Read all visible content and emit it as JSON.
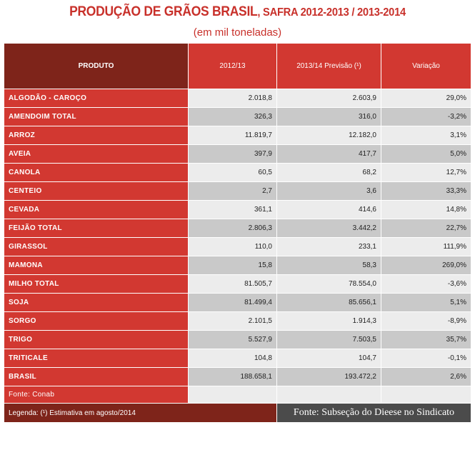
{
  "title_main": "PRODUÇÃO DE GRÃOS BRASIL",
  "title_sub": ", SAFRA 2012-2013 / 2013-2014",
  "subtitle": "(em mil toneladas)",
  "headers": {
    "produto": "PRODUTO",
    "y2012": "2012/13",
    "y2013": "2013/14 Previsão (¹)",
    "variacao": "Variação"
  },
  "rows": [
    {
      "produto": "ALGODÃO - CAROÇO",
      "y2012": "2.018,8",
      "y2013": "2.603,9",
      "variacao": "29,0%"
    },
    {
      "produto": "AMENDOIM TOTAL",
      "y2012": "326,3",
      "y2013": "316,0",
      "variacao": "-3,2%"
    },
    {
      "produto": "ARROZ",
      "y2012": "11.819,7",
      "y2013": "12.182,0",
      "variacao": "3,1%"
    },
    {
      "produto": "AVEIA",
      "y2012": "397,9",
      "y2013": "417,7",
      "variacao": "5,0%"
    },
    {
      "produto": "CANOLA",
      "y2012": "60,5",
      "y2013": "68,2",
      "variacao": "12,7%"
    },
    {
      "produto": "CENTEIO",
      "y2012": "2,7",
      "y2013": "3,6",
      "variacao": "33,3%"
    },
    {
      "produto": "CEVADA",
      "y2012": "361,1",
      "y2013": "414,6",
      "variacao": "14,8%"
    },
    {
      "produto": "FEIJÃO TOTAL",
      "y2012": "2.806,3",
      "y2013": "3.442,2",
      "variacao": "22,7%"
    },
    {
      "produto": "GIRASSOL",
      "y2012": "110,0",
      "y2013": "233,1",
      "variacao": "111,9%"
    },
    {
      "produto": "MAMONA",
      "y2012": "15,8",
      "y2013": "58,3",
      "variacao": "269,0%"
    },
    {
      "produto": "MILHO TOTAL",
      "y2012": "81.505,7",
      "y2013": "78.554,0",
      "variacao": "-3,6%"
    },
    {
      "produto": "SOJA",
      "y2012": "81.499,4",
      "y2013": "85.656,1",
      "variacao": "5,1%"
    },
    {
      "produto": "SORGO",
      "y2012": "2.101,5",
      "y2013": "1.914,3",
      "variacao": "-8,9%"
    },
    {
      "produto": "TRIGO",
      "y2012": "5.527,9",
      "y2013": "7.503,5",
      "variacao": "35,7%"
    },
    {
      "produto": "TRITICALE",
      "y2012": "104,8",
      "y2013": "104,7",
      "variacao": "-0,1%"
    },
    {
      "produto": "BRASIL",
      "y2012": "188.658,1",
      "y2013": "193.472,2",
      "variacao": "2,6%"
    }
  ],
  "fonte_conab": "Fonte: Conab",
  "legenda": "Legenda: (¹) Estimativa em agosto/2014",
  "fonte_dieese": "Fonte: Subseção do Dieese no Sindicato"
}
